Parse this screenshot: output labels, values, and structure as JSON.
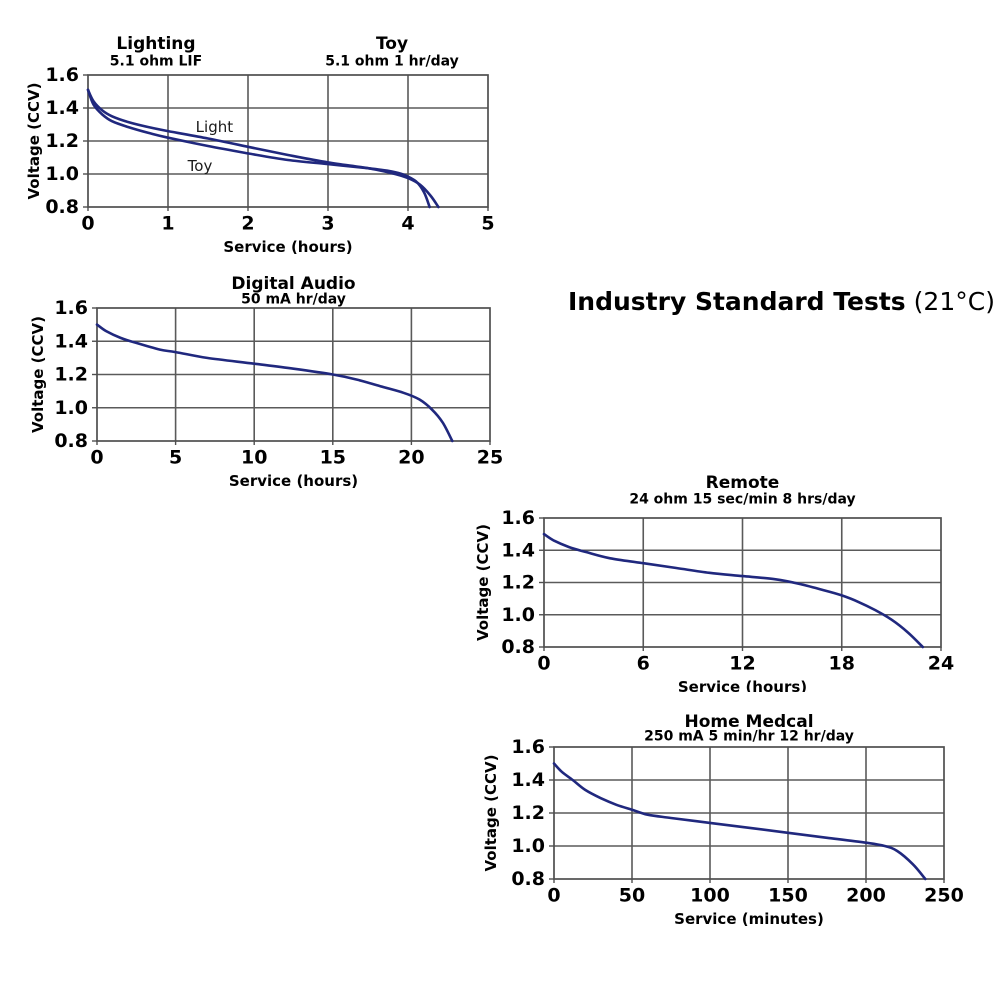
{
  "heading": {
    "bold": "Industry Standard Tests",
    "temp": "(21°C)"
  },
  "colors": {
    "curve": "#20287e",
    "grid": "#5a5a5a",
    "border": "#4f4f4f",
    "text": "#000000"
  },
  "chart_data": [
    {
      "type": "line",
      "name": "lighting-toy",
      "headers": [
        {
          "title": "Lighting",
          "subtitle": "5.1 ohm LIF",
          "x_frac": 0.17
        },
        {
          "title": "Toy",
          "subtitle": "5.1 ohm 1 hr/day",
          "x_frac": 0.76
        }
      ],
      "xlabel": "Service (hours)",
      "ylabel": "Voltage (CCV)",
      "xlim": [
        0,
        5
      ],
      "xticks": [
        "0",
        "1",
        "2",
        "3",
        "4",
        "5"
      ],
      "ylim": [
        0.8,
        1.6
      ],
      "yticks": [
        "0.8",
        "1.0",
        "1.2",
        "1.4",
        "1.6"
      ],
      "grid": true,
      "legend_position": "inline-annotations",
      "series": [
        {
          "name": "Light",
          "points": [
            [
              0,
              1.51
            ],
            [
              0.07,
              1.44
            ],
            [
              0.18,
              1.385
            ],
            [
              0.3,
              1.35
            ],
            [
              0.5,
              1.315
            ],
            [
              0.75,
              1.285
            ],
            [
              1.0,
              1.26
            ],
            [
              1.5,
              1.215
            ],
            [
              2.0,
              1.165
            ],
            [
              2.5,
              1.115
            ],
            [
              3.0,
              1.07
            ],
            [
              3.5,
              1.035
            ],
            [
              3.8,
              1.005
            ],
            [
              4.0,
              0.975
            ],
            [
              4.15,
              0.935
            ],
            [
              4.28,
              0.87
            ],
            [
              4.38,
              0.8
            ]
          ]
        },
        {
          "name": "Toy",
          "points": [
            [
              0,
              1.51
            ],
            [
              0.07,
              1.42
            ],
            [
              0.18,
              1.36
            ],
            [
              0.3,
              1.32
            ],
            [
              0.5,
              1.285
            ],
            [
              0.75,
              1.25
            ],
            [
              1.0,
              1.22
            ],
            [
              1.5,
              1.17
            ],
            [
              2.0,
              1.125
            ],
            [
              2.5,
              1.085
            ],
            [
              3.0,
              1.06
            ],
            [
              3.5,
              1.035
            ],
            [
              3.8,
              1.015
            ],
            [
              3.95,
              0.995
            ],
            [
              4.1,
              0.955
            ],
            [
              4.2,
              0.89
            ],
            [
              4.27,
              0.8
            ]
          ]
        }
      ],
      "annotations": [
        {
          "text": "Light",
          "x": 1.58,
          "y": 1.285
        },
        {
          "text": "Toy",
          "x": 1.4,
          "y": 1.05
        }
      ]
    },
    {
      "type": "line",
      "name": "digital-audio",
      "headers": [
        {
          "title": "Digital Audio",
          "subtitle": "50 mA  hr/day",
          "x_frac": 0.5
        }
      ],
      "xlabel": "Service (hours)",
      "ylabel": "Voltage (CCV)",
      "xlim": [
        0,
        25
      ],
      "xticks": [
        "0",
        "5",
        "10",
        "15",
        "20",
        "25"
      ],
      "ylim": [
        0.8,
        1.6
      ],
      "yticks": [
        "0.8",
        "1.0",
        "1.2",
        "1.4",
        "1.6"
      ],
      "grid": true,
      "series": [
        {
          "name": "Digital Audio",
          "points": [
            [
              0,
              1.5
            ],
            [
              0.6,
              1.46
            ],
            [
              1.5,
              1.42
            ],
            [
              2.5,
              1.39
            ],
            [
              4,
              1.35
            ],
            [
              5,
              1.335
            ],
            [
              7,
              1.3
            ],
            [
              10,
              1.265
            ],
            [
              12.5,
              1.235
            ],
            [
              15,
              1.2
            ],
            [
              16.5,
              1.17
            ],
            [
              18,
              1.13
            ],
            [
              19.5,
              1.09
            ],
            [
              20.5,
              1.05
            ],
            [
              21.3,
              0.99
            ],
            [
              22,
              0.91
            ],
            [
              22.6,
              0.8
            ]
          ]
        }
      ],
      "annotations": []
    },
    {
      "type": "line",
      "name": "remote",
      "headers": [
        {
          "title": "Remote",
          "subtitle": "24 ohm 15 sec/min 8 hrs/day",
          "x_frac": 0.5
        }
      ],
      "xlabel": "Service (hours)",
      "ylabel": "Voltage (CCV)",
      "xlim": [
        0,
        24
      ],
      "xticks": [
        "0",
        "6",
        "12",
        "18",
        "24"
      ],
      "ylim": [
        0.8,
        1.6
      ],
      "yticks": [
        "0.8",
        "1.0",
        "1.2",
        "1.4",
        "1.6"
      ],
      "grid": true,
      "series": [
        {
          "name": "Remote",
          "points": [
            [
              0,
              1.5
            ],
            [
              0.6,
              1.46
            ],
            [
              1.5,
              1.42
            ],
            [
              2.5,
              1.39
            ],
            [
              4,
              1.35
            ],
            [
              6,
              1.32
            ],
            [
              8,
              1.29
            ],
            [
              10,
              1.26
            ],
            [
              12,
              1.24
            ],
            [
              14,
              1.22
            ],
            [
              15.5,
              1.19
            ],
            [
              17,
              1.15
            ],
            [
              18,
              1.12
            ],
            [
              19,
              1.08
            ],
            [
              20,
              1.03
            ],
            [
              21,
              0.97
            ],
            [
              22,
              0.89
            ],
            [
              22.9,
              0.8
            ]
          ]
        }
      ],
      "annotations": []
    },
    {
      "type": "line",
      "name": "home-medical",
      "headers": [
        {
          "title": "Home Medcal",
          "subtitle": "250 mA 5 min/hr 12 hr/day",
          "x_frac": 0.5
        }
      ],
      "xlabel": "Service (minutes)",
      "ylabel": "Voltage (CCV)",
      "xlim": [
        0,
        250
      ],
      "xticks": [
        "0",
        "50",
        "100",
        "150",
        "200",
        "250"
      ],
      "ylim": [
        0.8,
        1.6
      ],
      "yticks": [
        "0.8",
        "1.0",
        "1.2",
        "1.4",
        "1.6"
      ],
      "grid": true,
      "series": [
        {
          "name": "Home Medcal",
          "points": [
            [
              0,
              1.5
            ],
            [
              5,
              1.45
            ],
            [
              12,
              1.4
            ],
            [
              20,
              1.34
            ],
            [
              30,
              1.29
            ],
            [
              40,
              1.25
            ],
            [
              50,
              1.22
            ],
            [
              60,
              1.19
            ],
            [
              75,
              1.17
            ],
            [
              100,
              1.14
            ],
            [
              125,
              1.11
            ],
            [
              150,
              1.08
            ],
            [
              175,
              1.05
            ],
            [
              200,
              1.02
            ],
            [
              212,
              1.0
            ],
            [
              220,
              0.97
            ],
            [
              230,
              0.89
            ],
            [
              238,
              0.8
            ]
          ]
        }
      ],
      "annotations": []
    }
  ]
}
